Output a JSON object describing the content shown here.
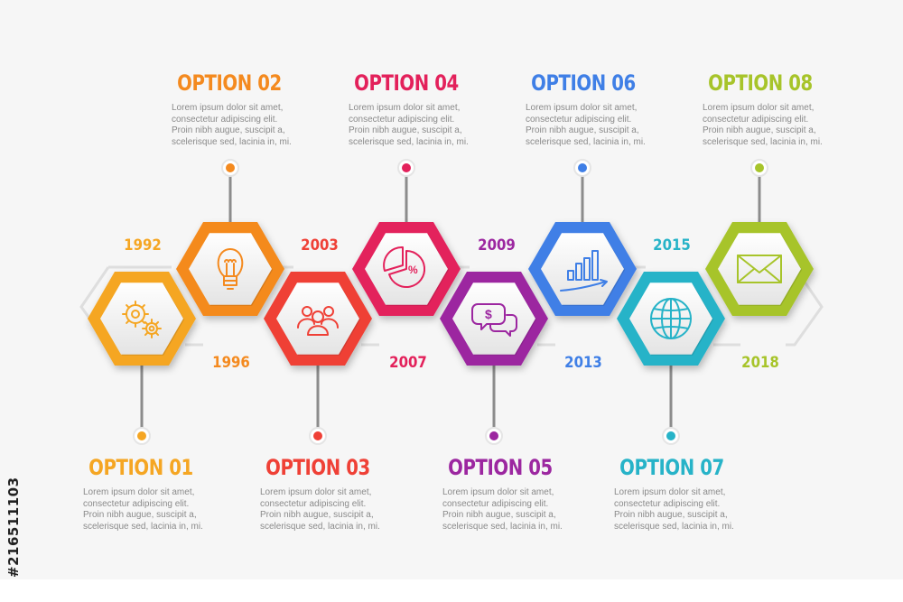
{
  "colors": {
    "opt1": "#f5a623",
    "opt2": "#f48a1f",
    "opt3": "#ef4036",
    "opt4": "#e3215b",
    "opt5": "#9c27a0",
    "opt6": "#3f7fe6",
    "opt7": "#27b3c8",
    "opt8": "#a7c42a"
  },
  "options": [
    {
      "title": "OPTION 01",
      "year": "1992",
      "icon": "gears-icon",
      "desc": "Lorem ipsum dolor sit amet,\nconsectetur adipiscing elit.\nProin nibh augue, suscipit a,\nscelerisque sed, lacinia in, mi."
    },
    {
      "title": "OPTION 02",
      "year": "1996",
      "icon": "lightbulb-icon",
      "desc": "Lorem ipsum dolor sit amet,\nconsectetur adipiscing elit.\nProin nibh augue, suscipit a,\nscelerisque sed, lacinia in, mi."
    },
    {
      "title": "OPTION 03",
      "year": "2003",
      "icon": "people-group-icon",
      "desc": "Lorem ipsum dolor sit amet,\nconsectetur adipiscing elit.\nProin nibh augue, suscipit a,\nscelerisque sed, lacinia in, mi."
    },
    {
      "title": "OPTION 04",
      "year": "2007",
      "icon": "pie-chart-percent-icon",
      "desc": "Lorem ipsum dolor sit amet,\nconsectetur adipiscing elit.\nProin nibh augue, suscipit a,\nscelerisque sed, lacinia in, mi."
    },
    {
      "title": "OPTION 05",
      "year": "2009",
      "icon": "money-chat-icon",
      "desc": "Lorem ipsum dolor sit amet,\nconsectetur adipiscing elit.\nProin nibh augue, suscipit a,\nscelerisque sed, lacinia in, mi."
    },
    {
      "title": "OPTION 06",
      "year": "2013",
      "icon": "growth-chart-icon",
      "desc": "Lorem ipsum dolor sit amet,\nconsectetur adipiscing elit.\nProin nibh augue, suscipit a,\nscelerisque sed, lacinia in, mi."
    },
    {
      "title": "OPTION 07",
      "year": "2015",
      "icon": "globe-icon",
      "desc": "Lorem ipsum dolor sit amet,\nconsectetur adipiscing elit.\nProin nibh augue, suscipit a,\nscelerisque sed, lacinia in, mi."
    },
    {
      "title": "OPTION 08",
      "year": "2018",
      "icon": "envelope-icon",
      "desc": "Lorem ipsum dolor sit amet,\nconsectetur adipiscing elit.\nProin nibh augue, suscipit a,\nscelerisque sed, lacinia in, mi."
    }
  ],
  "watermark": {
    "stock_id": "#216511103"
  }
}
